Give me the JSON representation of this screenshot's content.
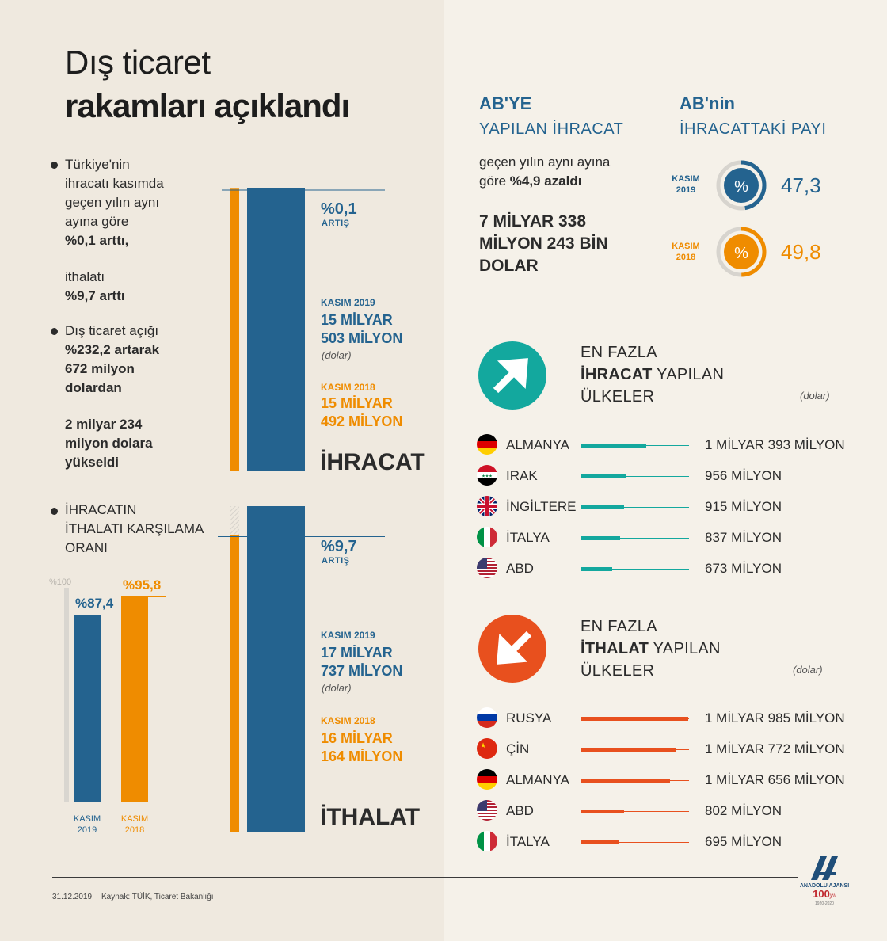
{
  "title_line1": "Dış ticaret",
  "title_line2": "rakamları açıklandı",
  "bullets": {
    "b1_lines": [
      "Türkiye'nin",
      "ihracatı kasımda",
      "geçen yılın aynı",
      "ayına göre"
    ],
    "b1_bold": "%0,1 arttı,",
    "b1_plain2": "ithalatı",
    "b1_bold2": "%9,7 arttı",
    "b2_lines": [
      "Dış ticaret açığı",
      "%232,2 artarak",
      "672 milyon",
      "dolardan"
    ],
    "b2_extra": [
      "2 milyar 234",
      "milyon dolara",
      "yükseldi"
    ],
    "b3_lines": [
      "İHRACATIN",
      "İTHALATI KARŞILAMA",
      "ORANI"
    ]
  },
  "coverage_chart": {
    "ref_label": "%100",
    "bar1_label": "%87,4",
    "bar2_label": "%95,8",
    "x1_line1": "KASIM",
    "x1_line2": "2019",
    "x2_line1": "KASIM",
    "x2_line2": "2018"
  },
  "ihracat": {
    "pct": "%0,1",
    "pct_sub": "ARTIŞ",
    "k2019_label": "KASIM 2019",
    "k2019_v1": "15 MİLYAR",
    "k2019_v2": "503 MİLYON",
    "unit": "(dolar)",
    "k2018_label": "KASIM 2018",
    "k2018_v1": "15 MİLYAR",
    "k2018_v2": "492 MİLYON",
    "word": "İHRACAT"
  },
  "ithalat": {
    "pct": "%9,7",
    "pct_sub": "ARTIŞ",
    "k2019_label": "KASIM 2019",
    "k2019_v1": "17 MİLYAR",
    "k2019_v2": "737 MİLYON",
    "unit": "(dolar)",
    "k2018_label": "KASIM 2018",
    "k2018_v1": "16 MİLYAR",
    "k2018_v2": "164 MİLYON",
    "word": "İTHALAT"
  },
  "ab": {
    "head1": "AB'YE",
    "head1_sub": "YAPILAN İHRACAT",
    "desc1": "geçen yılın aynı ayına",
    "desc2_plain": "göre ",
    "desc2_bold": "%4,9 azaldı",
    "value_lines": [
      "7 MİLYAR 338",
      "MİLYON 243 BİN",
      "DOLAR"
    ],
    "head2": "AB'nin",
    "head2_sub": "İHRACATTAKİ PAYI",
    "share2019_label1": "KASIM",
    "share2019_label2": "2019",
    "share2019_value": "47,3",
    "share2018_label1": "KASIM",
    "share2018_label2": "2018",
    "share2018_value": "49,8",
    "pct_symbol": "%"
  },
  "export_countries": {
    "head_l1": "EN FAZLA",
    "head_l2_bold": "İHRACAT",
    "head_l2_rest": " YAPILAN",
    "head_l3": "ÜLKELER",
    "unit": "(dolar)",
    "rows": [
      {
        "flag": "germany-flag",
        "name": "ALMANYA",
        "value": "1 MİLYAR 393 MİLYON"
      },
      {
        "flag": "iraq-flag",
        "name": "IRAK",
        "value": "956 MİLYON"
      },
      {
        "flag": "uk-flag",
        "name": "İNGİLTERE",
        "value": "915 MİLYON"
      },
      {
        "flag": "italy-flag",
        "name": "İTALYA",
        "value": "837 MİLYON"
      },
      {
        "flag": "usa-flag",
        "name": "ABD",
        "value": "673 MİLYON"
      }
    ]
  },
  "import_countries": {
    "head_l1": "EN FAZLA",
    "head_l2_bold": "İTHALAT",
    "head_l2_rest": " YAPILAN",
    "head_l3": "ÜLKELER",
    "unit": "(dolar)",
    "rows": [
      {
        "flag": "russia-flag",
        "name": "RUSYA",
        "value": "1 MİLYAR 985 MİLYON"
      },
      {
        "flag": "china-flag",
        "name": "ÇİN",
        "value": "1 MİLYAR 772 MİLYON"
      },
      {
        "flag": "germany-flag",
        "name": "ALMANYA",
        "value": "1 MİLYAR 656 MİLYON"
      },
      {
        "flag": "usa-flag",
        "name": "ABD",
        "value": "802 MİLYON"
      },
      {
        "flag": "italy-flag",
        "name": "İTALYA",
        "value": "695 MİLYON"
      }
    ]
  },
  "footer": {
    "date": "31.12.2019",
    "source": "Kaynak: TÜİK, Ticaret Bakanlığı",
    "logo_text": "ANADOLU AJANSI",
    "logo_100": "100",
    "logo_yil": "yıl",
    "logo_years": "1920-2020"
  },
  "colors": {
    "blue": "#24638f",
    "orange": "#ef8c00",
    "teal": "#13a89e",
    "red_orange": "#e8501e"
  },
  "chart_data": [
    {
      "type": "bar",
      "categories": [
        "KASIM 2019",
        "KASIM 2018"
      ],
      "series": [
        {
          "name": "İHRACAT",
          "values": [
            15503,
            15492
          ]
        },
        {
          "name": "İTHALAT",
          "values": [
            17737,
            16164
          ]
        }
      ]
    },
    {
      "type": "bar",
      "categories": [
        "KASIM 2019",
        "KASIM 2018"
      ],
      "values": [
        87.4,
        95.8
      ],
      "ylim": [
        0,
        100
      ]
    },
    {
      "type": "pie",
      "categories": [
        "KASIM 2019",
        "KASIM 2018"
      ],
      "values": [
        47.3,
        49.8
      ]
    },
    {
      "type": "bar",
      "categories": [
        "ALMANYA",
        "IRAK",
        "İNGİLTERE",
        "İTALYA",
        "ABD"
      ],
      "values": [
        1393,
        956,
        915,
        837,
        673
      ]
    },
    {
      "type": "bar",
      "categories": [
        "RUSYA",
        "ÇİN",
        "ALMANYA",
        "ABD",
        "İTALYA"
      ],
      "values": [
        1985,
        1772,
        1656,
        802,
        695
      ]
    }
  ]
}
